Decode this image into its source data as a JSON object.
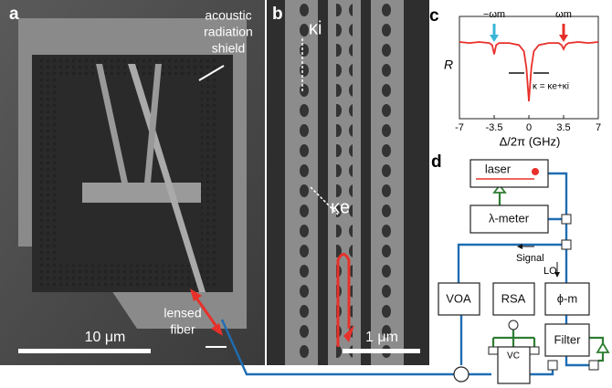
{
  "panels": {
    "a": {
      "label": "a",
      "shield_lines": [
        "acoustic",
        "radiation",
        "shield"
      ],
      "scale": "10 μm",
      "fiber_lines": [
        "lensed",
        "fiber"
      ]
    },
    "b": {
      "label": "b",
      "kappa_i": "κi",
      "kappa_e": "κe",
      "scale": "1 μm"
    },
    "c": {
      "label": "c"
    },
    "d": {
      "label": "d",
      "laser": "laser",
      "meter": "λ-meter",
      "signal": "Signal",
      "lo": "LO",
      "voa": "VOA",
      "rsa": "RSA",
      "phase": "ϕ-m",
      "filter": "Filter",
      "vc": "VC"
    }
  },
  "chart_data": {
    "type": "line",
    "ylabel": "R",
    "xlabel": "Δ/2π (GHz)",
    "annotations": [
      "−ωm",
      "ωm",
      "κ = κe+κi"
    ],
    "x": [
      -7,
      -6,
      -5,
      -4,
      -3.7,
      -3.5,
      -3.3,
      -3,
      -2,
      -1,
      -0.5,
      -0.25,
      0,
      0.25,
      0.5,
      1,
      2,
      3,
      3.3,
      3.5,
      3.7,
      4,
      5,
      6,
      7
    ],
    "values": [
      0.75,
      0.74,
      0.75,
      0.74,
      0.72,
      0.63,
      0.72,
      0.74,
      0.74,
      0.72,
      0.66,
      0.5,
      0.17,
      0.5,
      0.66,
      0.72,
      0.74,
      0.74,
      0.72,
      0.68,
      0.72,
      0.74,
      0.75,
      0.74,
      0.75
    ],
    "color": "#e8302a",
    "xlim": [
      -7,
      7
    ],
    "xticks": [
      -7,
      -3.5,
      0,
      3.5,
      7
    ],
    "ylim": [
      0,
      1
    ]
  }
}
